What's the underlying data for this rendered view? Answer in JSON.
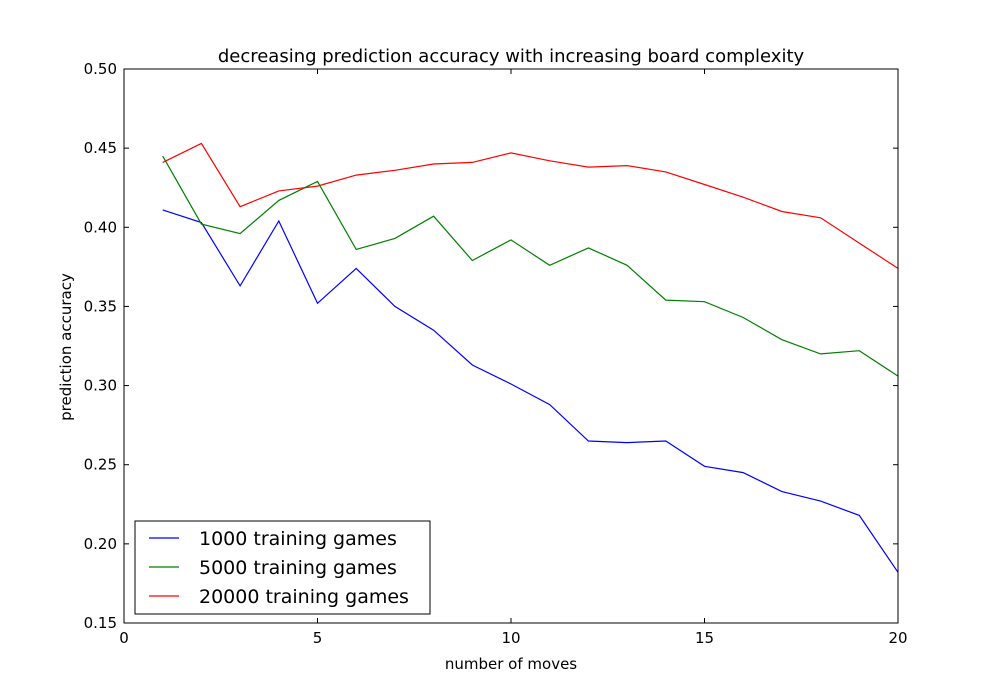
{
  "chart_data": {
    "type": "line",
    "title": "decreasing prediction accuracy with increasing board complexity",
    "xlabel": "number of moves",
    "ylabel": "prediction accuracy",
    "xlim": [
      0,
      20
    ],
    "ylim": [
      0.15,
      0.5
    ],
    "xticks": [
      0,
      5,
      10,
      15,
      20
    ],
    "xtick_labels": [
      "0",
      "5",
      "10",
      "15",
      "20"
    ],
    "yticks": [
      0.15,
      0.2,
      0.25,
      0.3,
      0.35,
      0.4,
      0.45,
      0.5
    ],
    "ytick_labels": [
      "0.15",
      "0.20",
      "0.25",
      "0.30",
      "0.35",
      "0.40",
      "0.45",
      "0.50"
    ],
    "grid": false,
    "legend_position": "lower-left",
    "x": [
      1,
      2,
      3,
      4,
      5,
      6,
      7,
      8,
      9,
      10,
      11,
      12,
      13,
      14,
      15,
      16,
      17,
      18,
      19,
      20
    ],
    "series": [
      {
        "name": "1000 training games",
        "color": "#0000ff",
        "values": [
          0.411,
          0.403,
          0.363,
          0.404,
          0.352,
          0.374,
          0.35,
          0.335,
          0.313,
          0.301,
          0.288,
          0.265,
          0.264,
          0.265,
          0.249,
          0.245,
          0.233,
          0.227,
          0.218,
          0.182
        ]
      },
      {
        "name": "5000 training games",
        "color": "#008000",
        "values": [
          0.445,
          0.402,
          0.396,
          0.417,
          0.429,
          0.386,
          0.393,
          0.407,
          0.379,
          0.392,
          0.376,
          0.387,
          0.376,
          0.354,
          0.353,
          0.343,
          0.329,
          0.32,
          0.322,
          0.306
        ]
      },
      {
        "name": "20000 training games",
        "color": "#ff0000",
        "values": [
          0.441,
          0.453,
          0.413,
          0.423,
          0.426,
          0.433,
          0.436,
          0.44,
          0.441,
          0.447,
          0.442,
          0.438,
          0.439,
          0.435,
          0.427,
          0.419,
          0.41,
          0.406,
          0.39,
          0.374
        ]
      }
    ]
  }
}
